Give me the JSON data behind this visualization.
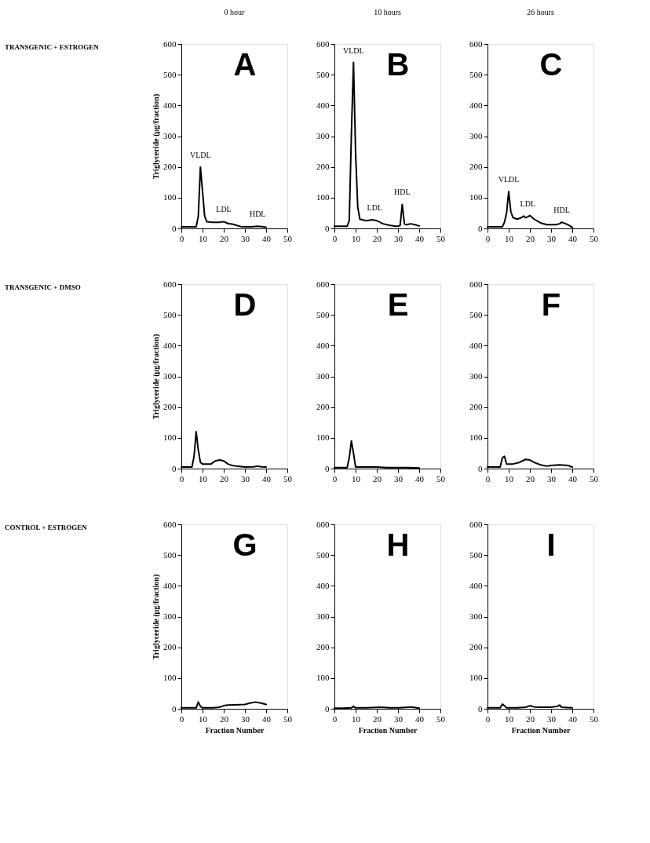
{
  "chart_data": [
    {
      "type": "line",
      "title": "A",
      "subtitle": "0 hour",
      "ylabel": "Triglyceride (μg/fraction)",
      "annotations": [
        "TRANSGENIC + ESTROGEN",
        {
          "text": "VLDL",
          "x": 9,
          "y": 200
        },
        {
          "text": "LDL",
          "x": 20,
          "y": 22
        },
        {
          "text": "HDL",
          "x": 36,
          "y": 7
        }
      ],
      "xlim": [
        0,
        50
      ],
      "xticks": [
        0,
        10,
        20,
        30,
        40,
        50
      ],
      "ylim": [
        0,
        600
      ],
      "yticks": [
        0,
        100,
        200,
        300,
        400,
        500,
        600
      ],
      "grid": false,
      "series": [
        {
          "color": "#000000",
          "x": [
            0,
            3,
            5,
            7,
            8,
            9,
            10,
            11,
            12,
            15,
            18,
            20,
            22,
            24,
            26,
            28,
            30,
            33,
            36,
            38,
            40
          ],
          "values": [
            5,
            5,
            5,
            5,
            40,
            200,
            120,
            40,
            22,
            20,
            20,
            22,
            16,
            14,
            10,
            6,
            5,
            5,
            7,
            6,
            4
          ]
        }
      ]
    },
    {
      "type": "line",
      "title": "B",
      "subtitle": "10 hours",
      "annotations": [
        {
          "text": "VLDL",
          "x": 9,
          "y": 540
        },
        {
          "text": "LDL",
          "x": 19,
          "y": 28
        },
        {
          "text": "HDL",
          "x": 32,
          "y": 78
        }
      ],
      "xlim": [
        0,
        50
      ],
      "xticks": [
        0,
        10,
        20,
        30,
        40,
        50
      ],
      "ylim": [
        0,
        600
      ],
      "yticks": [
        0,
        100,
        200,
        300,
        400,
        500,
        600
      ],
      "grid": false,
      "series": [
        {
          "color": "#000000",
          "x": [
            0,
            3,
            5,
            6,
            7,
            8,
            9,
            10,
            11,
            12,
            15,
            18,
            20,
            23,
            26,
            29,
            30,
            31,
            32,
            33,
            34,
            36,
            38,
            40
          ],
          "values": [
            7,
            7,
            7,
            7,
            25,
            305,
            540,
            245,
            70,
            30,
            25,
            28,
            25,
            15,
            10,
            7,
            7,
            10,
            78,
            15,
            12,
            15,
            12,
            8
          ]
        }
      ]
    },
    {
      "type": "line",
      "title": "C",
      "subtitle": "26 hours",
      "annotations": [
        {
          "text": "VLDL",
          "x": 10,
          "y": 120
        },
        {
          "text": "LDL",
          "x": 19,
          "y": 42
        },
        {
          "text": "HDL",
          "x": 35,
          "y": 20
        }
      ],
      "xlim": [
        0,
        50
      ],
      "xticks": [
        0,
        10,
        20,
        30,
        40,
        50
      ],
      "ylim": [
        0,
        600
      ],
      "yticks": [
        0,
        100,
        200,
        300,
        400,
        500,
        600
      ],
      "grid": false,
      "series": [
        {
          "color": "#000000",
          "x": [
            0,
            4,
            7,
            8,
            9,
            10,
            11,
            12,
            14,
            16,
            17,
            18,
            19,
            20,
            22,
            25,
            28,
            32,
            34,
            35,
            37,
            39,
            40
          ],
          "values": [
            5,
            5,
            5,
            20,
            50,
            120,
            55,
            35,
            30,
            35,
            40,
            35,
            38,
            42,
            30,
            18,
            12,
            12,
            15,
            20,
            15,
            8,
            3
          ]
        }
      ]
    },
    {
      "type": "line",
      "title": "D",
      "ylabel": "Triglyceride (μg/fraction)",
      "annotations": [
        "TRANSGENIC + DMSO"
      ],
      "xlim": [
        0,
        50
      ],
      "xticks": [
        0,
        10,
        20,
        30,
        40,
        50
      ],
      "ylim": [
        0,
        600
      ],
      "yticks": [
        0,
        100,
        200,
        300,
        400,
        500,
        600
      ],
      "grid": false,
      "series": [
        {
          "color": "#000000",
          "x": [
            0,
            3,
            5,
            6,
            7,
            8,
            9,
            10,
            14,
            16,
            18,
            20,
            22,
            24,
            26,
            30,
            34,
            36,
            38,
            40
          ],
          "values": [
            5,
            5,
            5,
            40,
            120,
            60,
            20,
            15,
            15,
            25,
            28,
            25,
            15,
            10,
            8,
            5,
            6,
            8,
            6,
            5
          ]
        }
      ]
    },
    {
      "type": "line",
      "title": "E",
      "xlim": [
        0,
        50
      ],
      "xticks": [
        0,
        10,
        20,
        30,
        40,
        50
      ],
      "ylim": [
        0,
        600
      ],
      "yticks": [
        0,
        100,
        200,
        300,
        400,
        500,
        600
      ],
      "grid": false,
      "series": [
        {
          "color": "#000000",
          "x": [
            0,
            3,
            6,
            7,
            8,
            9,
            10,
            15,
            20,
            25,
            30,
            35,
            40
          ],
          "values": [
            3,
            3,
            3,
            35,
            90,
            50,
            5,
            5,
            5,
            3,
            3,
            3,
            2
          ]
        }
      ]
    },
    {
      "type": "line",
      "title": "F",
      "xlim": [
        0,
        50
      ],
      "xticks": [
        0,
        10,
        20,
        30,
        40,
        50
      ],
      "ylim": [
        0,
        600
      ],
      "yticks": [
        0,
        100,
        200,
        300,
        400,
        500,
        600
      ],
      "grid": false,
      "series": [
        {
          "color": "#000000",
          "x": [
            0,
            3,
            6,
            7,
            8,
            9,
            12,
            15,
            18,
            20,
            22,
            25,
            28,
            30,
            34,
            38,
            40
          ],
          "values": [
            5,
            5,
            5,
            35,
            40,
            15,
            15,
            20,
            30,
            28,
            20,
            12,
            8,
            10,
            12,
            10,
            5
          ]
        }
      ]
    },
    {
      "type": "line",
      "title": "G",
      "ylabel": "Triglyceride (μg/fraction)",
      "xlabel": "Fraction Number",
      "annotations": [
        "CONTROL + ESTROGEN"
      ],
      "xlim": [
        0,
        50
      ],
      "xticks": [
        0,
        10,
        20,
        30,
        40,
        50
      ],
      "ylim": [
        0,
        600
      ],
      "yticks": [
        0,
        100,
        200,
        300,
        400,
        500,
        600
      ],
      "grid": false,
      "series": [
        {
          "color": "#000000",
          "x": [
            0,
            4,
            7,
            8,
            9,
            10,
            15,
            18,
            20,
            22,
            25,
            30,
            32,
            35,
            38,
            40
          ],
          "values": [
            3,
            3,
            3,
            22,
            8,
            3,
            3,
            5,
            10,
            12,
            13,
            14,
            18,
            22,
            18,
            14
          ]
        }
      ]
    },
    {
      "type": "line",
      "title": "H",
      "xlabel": "Fraction Number",
      "xlim": [
        0,
        50
      ],
      "xticks": [
        0,
        10,
        20,
        30,
        40,
        50
      ],
      "ylim": [
        0,
        600
      ],
      "yticks": [
        0,
        100,
        200,
        300,
        400,
        500,
        600
      ],
      "grid": false,
      "series": [
        {
          "color": "#000000",
          "x": [
            0,
            4,
            8,
            9,
            10,
            15,
            22,
            26,
            30,
            35,
            37,
            40
          ],
          "values": [
            2,
            2,
            3,
            8,
            3,
            3,
            5,
            3,
            3,
            5,
            5,
            2
          ]
        }
      ]
    },
    {
      "type": "line",
      "title": "I",
      "xlabel": "Fraction Number",
      "xlim": [
        0,
        50
      ],
      "xticks": [
        0,
        10,
        20,
        30,
        40,
        50
      ],
      "ylim": [
        0,
        600
      ],
      "yticks": [
        0,
        100,
        200,
        300,
        400,
        500,
        600
      ],
      "grid": false,
      "series": [
        {
          "color": "#000000",
          "x": [
            0,
            3,
            6,
            7,
            8,
            9,
            14,
            18,
            20,
            22,
            26,
            30,
            33,
            34,
            35,
            38,
            40
          ],
          "values": [
            3,
            3,
            3,
            15,
            10,
            3,
            3,
            5,
            10,
            6,
            5,
            5,
            8,
            12,
            5,
            4,
            3
          ]
        }
      ]
    }
  ]
}
